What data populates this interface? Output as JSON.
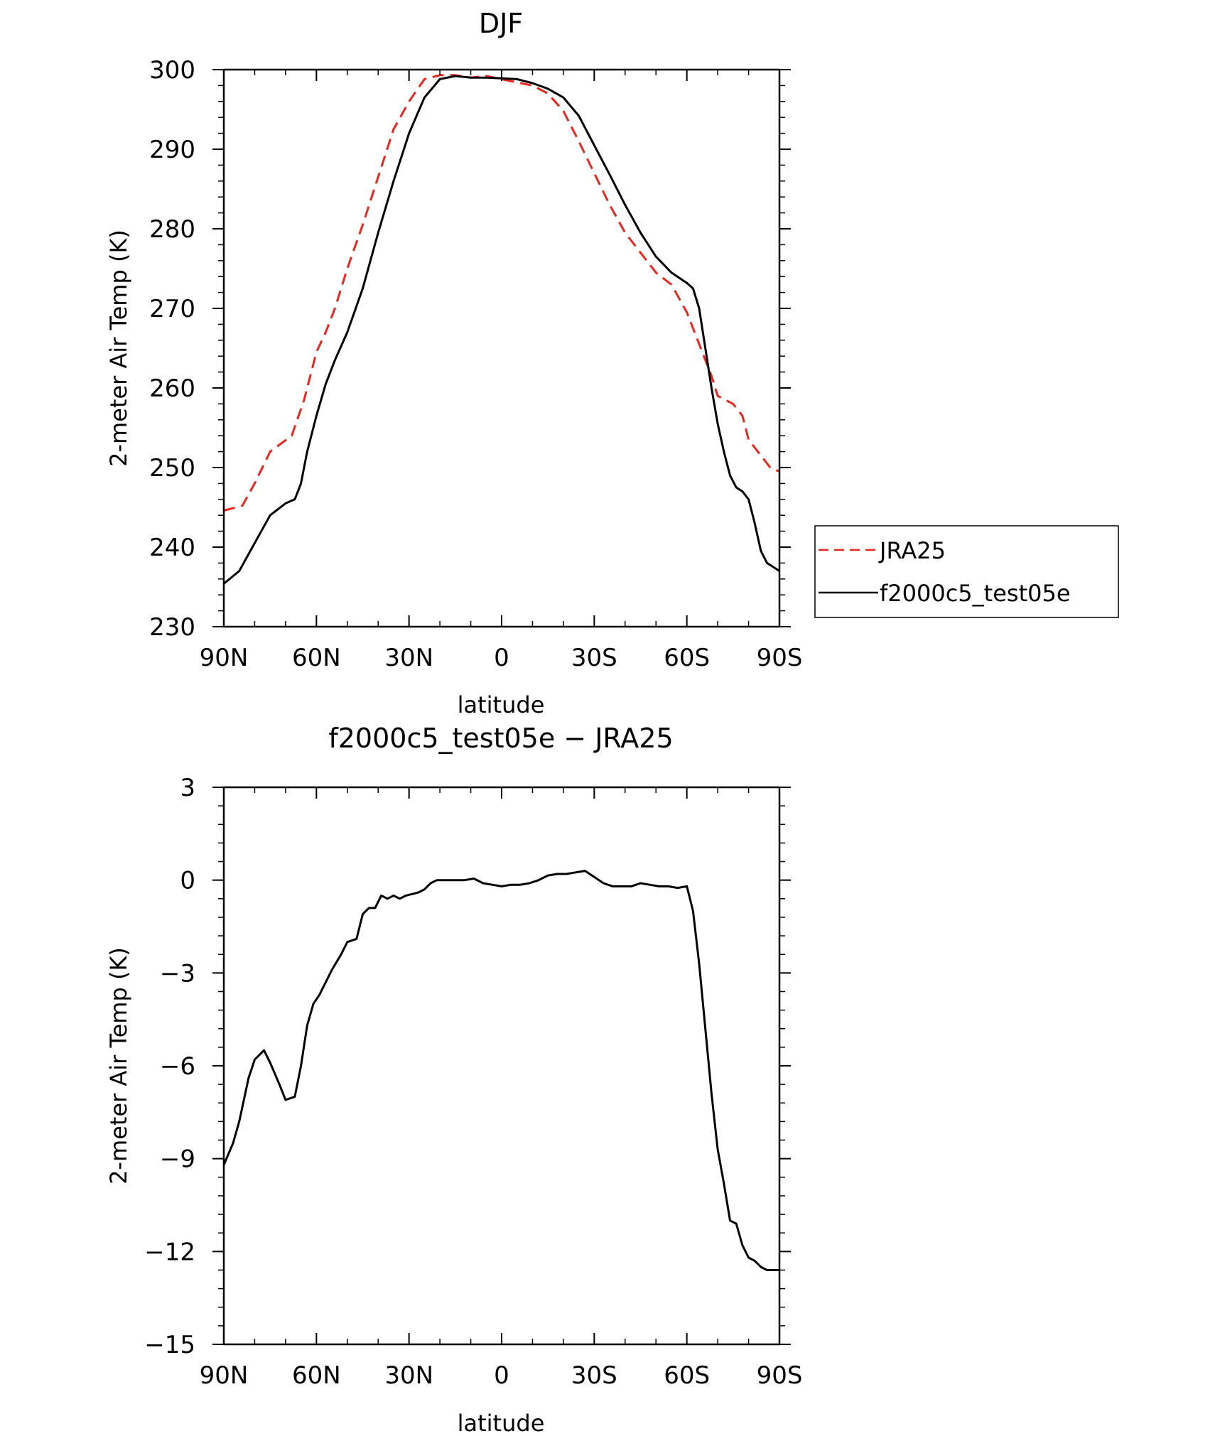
{
  "chart_data": [
    {
      "type": "line",
      "title": "DJF",
      "xlabel": "latitude",
      "ylabel": "2-meter Air Temp (K)",
      "x_unit": "degrees latitude (positive = N, negative = S)",
      "xlim": [
        90,
        -90
      ],
      "ylim": [
        230,
        300
      ],
      "xticks": [
        90,
        60,
        30,
        0,
        -30,
        -60,
        -90
      ],
      "xtick_labels": [
        "90N",
        "60N",
        "30N",
        "0",
        "30S",
        "60S",
        "90S"
      ],
      "yticks": [
        230,
        240,
        250,
        260,
        270,
        280,
        290,
        300
      ],
      "ytick_labels": [
        "230",
        "240",
        "250",
        "260",
        "270",
        "280",
        "290",
        "300"
      ],
      "legend_position": "right",
      "series": [
        {
          "name": "JRA25",
          "color": "#e8281e",
          "dash": "dashed",
          "x": [
            90,
            84,
            80,
            75,
            68,
            64,
            60,
            57,
            54,
            50,
            45,
            40,
            35,
            30,
            25,
            20,
            15,
            10,
            5,
            0,
            -5,
            -10,
            -15,
            -20,
            -25,
            -30,
            -35,
            -40,
            -45,
            -50,
            -55,
            -60,
            -65,
            -68,
            -70,
            -75,
            -78,
            -80,
            -85,
            -87,
            -90
          ],
          "y": [
            244.6,
            245.2,
            248,
            252,
            254,
            258.5,
            264.5,
            267,
            270,
            275,
            280.5,
            286.5,
            292.5,
            296,
            298.8,
            299.3,
            299.3,
            299.0,
            299.2,
            298.8,
            298.4,
            298.0,
            297.0,
            294.8,
            291.0,
            287.0,
            283.0,
            279.5,
            277.0,
            274.5,
            273.0,
            269.5,
            264.5,
            261.5,
            259.0,
            258.0,
            256.5,
            253.5,
            251.0,
            250.0,
            249.5
          ]
        },
        {
          "name": "f2000c5_test05e",
          "color": "#000000",
          "dash": "solid",
          "x": [
            90,
            85,
            80,
            75,
            70,
            67,
            65,
            63,
            60,
            57,
            54,
            50,
            45,
            40,
            35,
            30,
            25,
            20,
            15,
            10,
            5,
            0,
            -5,
            -10,
            -15,
            -20,
            -25,
            -30,
            -35,
            -40,
            -45,
            -50,
            -55,
            -60,
            -62,
            -64,
            -66,
            -68,
            -70,
            -72,
            -74,
            -76,
            -78,
            -80,
            -82,
            -84,
            -86,
            -88,
            -90
          ],
          "y": [
            235.4,
            237,
            240.5,
            244,
            245.5,
            246,
            248,
            252,
            256.5,
            260.5,
            263.5,
            267,
            272.5,
            279.5,
            286,
            292,
            296.5,
            298.8,
            299.2,
            299.0,
            299.0,
            298.9,
            298.8,
            298.3,
            297.6,
            296.5,
            294.2,
            290.5,
            286.8,
            283.0,
            279.5,
            276.5,
            274.5,
            273.2,
            272.5,
            270.0,
            265.0,
            260.0,
            255.5,
            252.0,
            249.0,
            247.5,
            247.0,
            246.0,
            243.0,
            239.5,
            238.0,
            237.5,
            237.0
          ]
        }
      ]
    },
    {
      "type": "line",
      "title": "f2000c5_test05e − JRA25",
      "xlabel": "latitude",
      "ylabel": "2-meter Air Temp (K)",
      "x_unit": "degrees latitude (positive = N, negative = S)",
      "xlim": [
        90,
        -90
      ],
      "ylim": [
        -15,
        3
      ],
      "xticks": [
        90,
        60,
        30,
        0,
        -30,
        -60,
        -90
      ],
      "xtick_labels": [
        "90N",
        "60N",
        "30N",
        "0",
        "30S",
        "60S",
        "90S"
      ],
      "yticks": [
        3,
        0,
        -3,
        -6,
        -9,
        -12,
        -15
      ],
      "ytick_labels": [
        "3",
        "0",
        "−3",
        "−6",
        "−9",
        "−12",
        "−15"
      ],
      "series": [
        {
          "color": "#000000",
          "dash": "solid",
          "x": [
            90,
            87,
            85,
            82,
            80,
            77,
            75,
            72,
            70,
            67,
            65,
            63,
            61,
            59,
            57,
            55,
            52,
            50,
            47,
            45,
            43,
            41,
            39,
            37,
            35,
            33,
            31,
            29,
            27,
            25,
            23,
            21,
            18,
            15,
            12,
            9,
            6,
            3,
            0,
            -3,
            -6,
            -9,
            -12,
            -15,
            -18,
            -21,
            -24,
            -27,
            -30,
            -33,
            -36,
            -39,
            -42,
            -45,
            -48,
            -51,
            -54,
            -57,
            -60,
            -62,
            -64,
            -66,
            -68,
            -70,
            -72,
            -74,
            -76,
            -78,
            -80,
            -82,
            -84,
            -86,
            -88,
            -90
          ],
          "y": [
            -9.2,
            -8.5,
            -7.8,
            -6.4,
            -5.8,
            -5.5,
            -5.9,
            -6.6,
            -7.1,
            -7.0,
            -6.0,
            -4.7,
            -4.0,
            -3.7,
            -3.3,
            -2.9,
            -2.4,
            -2.0,
            -1.9,
            -1.1,
            -0.9,
            -0.9,
            -0.5,
            -0.6,
            -0.5,
            -0.6,
            -0.5,
            -0.45,
            -0.4,
            -0.3,
            -0.1,
            0.0,
            0.0,
            0.0,
            0.0,
            0.05,
            -0.1,
            -0.15,
            -0.2,
            -0.15,
            -0.15,
            -0.1,
            0.0,
            0.15,
            0.2,
            0.2,
            0.25,
            0.3,
            0.1,
            -0.1,
            -0.2,
            -0.2,
            -0.2,
            -0.1,
            -0.15,
            -0.2,
            -0.2,
            -0.25,
            -0.2,
            -1.0,
            -2.7,
            -4.8,
            -6.9,
            -8.7,
            -9.8,
            -11.0,
            -11.1,
            -11.8,
            -12.2,
            -12.3,
            -12.5,
            -12.6,
            -12.6,
            -12.6
          ]
        }
      ]
    }
  ]
}
